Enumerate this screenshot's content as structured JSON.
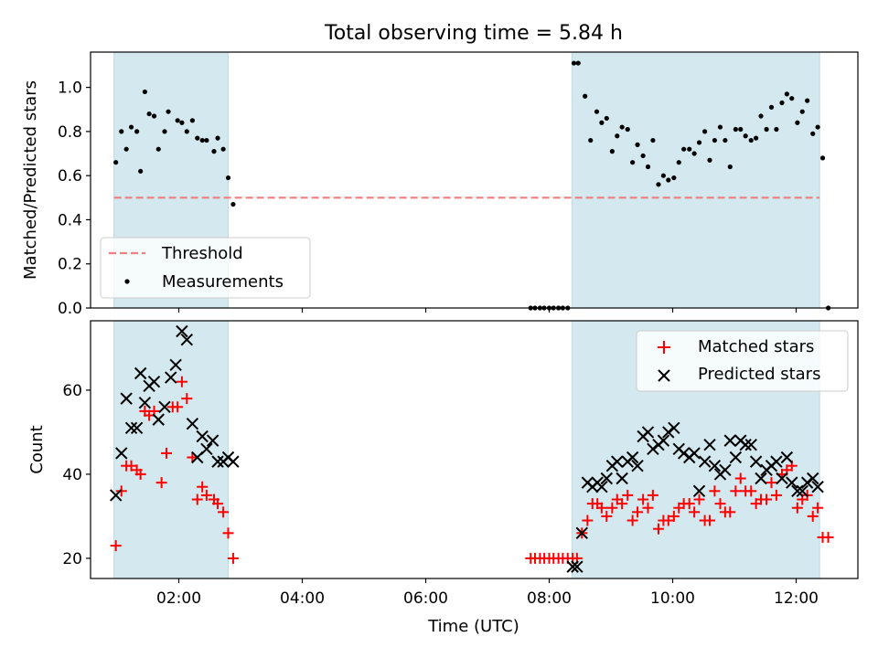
{
  "chart_data": [
    {
      "type": "scatter",
      "title": "Total observing time = 5.84 h",
      "ylabel": "Matched/Predicted stars",
      "xlabel": "",
      "xlim": [
        0.57,
        13.0
      ],
      "ylim": [
        0.0,
        1.16
      ],
      "yticks": [
        0.0,
        0.2,
        0.4,
        0.6,
        0.8,
        1.0
      ],
      "ytick_labels": [
        "0.0",
        "0.2",
        "0.4",
        "0.6",
        "0.8",
        "1.0"
      ],
      "xticks": [
        2,
        4,
        6,
        8,
        10,
        12
      ],
      "grid": false,
      "legend_position": "lower-left",
      "shaded_intervals": [
        [
          0.95,
          2.8
        ],
        [
          8.37,
          12.38
        ]
      ],
      "threshold": {
        "name": "Threshold",
        "value": 0.5,
        "x_range": [
          0.95,
          12.38
        ],
        "color": "#f07f7f"
      },
      "series": [
        {
          "name": "Measurements",
          "color": "#000000",
          "points": [
            [
              0.98,
              0.66
            ],
            [
              1.07,
              0.8
            ],
            [
              1.15,
              0.72
            ],
            [
              1.23,
              0.82
            ],
            [
              1.32,
              0.8
            ],
            [
              1.38,
              0.62
            ],
            [
              1.45,
              0.98
            ],
            [
              1.52,
              0.88
            ],
            [
              1.6,
              0.87
            ],
            [
              1.67,
              0.72
            ],
            [
              1.77,
              0.8
            ],
            [
              1.83,
              0.89
            ],
            [
              1.98,
              0.85
            ],
            [
              2.05,
              0.84
            ],
            [
              2.13,
              0.8
            ],
            [
              2.22,
              0.85
            ],
            [
              2.3,
              0.77
            ],
            [
              2.38,
              0.76
            ],
            [
              2.45,
              0.76
            ],
            [
              2.57,
              0.71
            ],
            [
              2.63,
              0.77
            ],
            [
              2.72,
              0.72
            ],
            [
              2.8,
              0.59
            ],
            [
              2.88,
              0.47
            ],
            [
              7.7,
              0.0
            ],
            [
              7.77,
              0.0
            ],
            [
              7.85,
              0.0
            ],
            [
              7.92,
              0.0
            ],
            [
              8.0,
              0.0
            ],
            [
              8.07,
              0.0
            ],
            [
              8.15,
              0.0
            ],
            [
              8.22,
              0.0
            ],
            [
              8.3,
              0.0
            ],
            [
              8.4,
              1.11
            ],
            [
              8.47,
              1.11
            ],
            [
              8.58,
              0.96
            ],
            [
              8.67,
              0.76
            ],
            [
              8.77,
              0.89
            ],
            [
              8.85,
              0.84
            ],
            [
              8.93,
              0.86
            ],
            [
              9.02,
              0.71
            ],
            [
              9.1,
              0.78
            ],
            [
              9.18,
              0.82
            ],
            [
              9.27,
              0.81
            ],
            [
              9.35,
              0.66
            ],
            [
              9.43,
              0.74
            ],
            [
              9.52,
              0.69
            ],
            [
              9.6,
              0.64
            ],
            [
              9.68,
              0.76
            ],
            [
              9.77,
              0.56
            ],
            [
              9.85,
              0.6
            ],
            [
              9.93,
              0.58
            ],
            [
              10.02,
              0.59
            ],
            [
              10.1,
              0.66
            ],
            [
              10.18,
              0.72
            ],
            [
              10.27,
              0.72
            ],
            [
              10.35,
              0.7
            ],
            [
              10.43,
              0.75
            ],
            [
              10.52,
              0.8
            ],
            [
              10.6,
              0.67
            ],
            [
              10.68,
              0.76
            ],
            [
              10.77,
              0.82
            ],
            [
              10.85,
              0.76
            ],
            [
              10.93,
              0.64
            ],
            [
              11.02,
              0.81
            ],
            [
              11.1,
              0.81
            ],
            [
              11.18,
              0.78
            ],
            [
              11.27,
              0.76
            ],
            [
              11.35,
              0.77
            ],
            [
              11.43,
              0.87
            ],
            [
              11.52,
              0.81
            ],
            [
              11.6,
              0.91
            ],
            [
              11.68,
              0.81
            ],
            [
              11.77,
              0.93
            ],
            [
              11.85,
              0.97
            ],
            [
              11.93,
              0.95
            ],
            [
              12.02,
              0.84
            ],
            [
              12.1,
              0.89
            ],
            [
              12.18,
              0.94
            ],
            [
              12.27,
              0.79
            ],
            [
              12.35,
              0.82
            ],
            [
              12.43,
              0.68
            ],
            [
              12.52,
              0.0
            ]
          ]
        }
      ]
    },
    {
      "type": "scatter",
      "title": "",
      "ylabel": "Count",
      "xlabel": "Time (UTC)",
      "xlim": [
        0.57,
        13.0
      ],
      "ylim": [
        15.2,
        76.5
      ],
      "yticks": [
        20,
        40,
        60
      ],
      "ytick_labels": [
        "20",
        "40",
        "60"
      ],
      "xticks": [
        2,
        4,
        6,
        8,
        10,
        12
      ],
      "xtick_labels": [
        "02:00",
        "04:00",
        "06:00",
        "08:00",
        "10:00",
        "12:00"
      ],
      "grid": false,
      "legend_position": "upper-right",
      "shaded_intervals": [
        [
          0.95,
          2.8
        ],
        [
          8.37,
          12.38
        ]
      ],
      "series": [
        {
          "name": "Matched stars",
          "color": "#ff0000",
          "marker": "plus",
          "points": [
            [
              0.98,
              23
            ],
            [
              1.07,
              36
            ],
            [
              1.15,
              42
            ],
            [
              1.23,
              42
            ],
            [
              1.32,
              41
            ],
            [
              1.38,
              40
            ],
            [
              1.45,
              55
            ],
            [
              1.52,
              54
            ],
            [
              1.6,
              55
            ],
            [
              1.72,
              38
            ],
            [
              1.8,
              45
            ],
            [
              1.9,
              56
            ],
            [
              1.98,
              56
            ],
            [
              2.05,
              62
            ],
            [
              2.13,
              58
            ],
            [
              2.22,
              44
            ],
            [
              2.3,
              34
            ],
            [
              2.38,
              37
            ],
            [
              2.45,
              35
            ],
            [
              2.57,
              34
            ],
            [
              2.63,
              33
            ],
            [
              2.72,
              31
            ],
            [
              2.8,
              26
            ],
            [
              2.88,
              20
            ],
            [
              7.7,
              20
            ],
            [
              7.77,
              20
            ],
            [
              7.85,
              20
            ],
            [
              7.92,
              20
            ],
            [
              8.0,
              20
            ],
            [
              8.07,
              20
            ],
            [
              8.15,
              20
            ],
            [
              8.22,
              20
            ],
            [
              8.3,
              20
            ],
            [
              8.38,
              20
            ],
            [
              8.45,
              20
            ],
            [
              8.53,
              26
            ],
            [
              8.62,
              29
            ],
            [
              8.7,
              33
            ],
            [
              8.78,
              33
            ],
            [
              8.85,
              32
            ],
            [
              8.93,
              30
            ],
            [
              9.02,
              32
            ],
            [
              9.1,
              34
            ],
            [
              9.18,
              33
            ],
            [
              9.27,
              35
            ],
            [
              9.35,
              29
            ],
            [
              9.43,
              31
            ],
            [
              9.52,
              34
            ],
            [
              9.6,
              32
            ],
            [
              9.68,
              35
            ],
            [
              9.77,
              27
            ],
            [
              9.85,
              29
            ],
            [
              9.93,
              29
            ],
            [
              10.02,
              30
            ],
            [
              10.1,
              32
            ],
            [
              10.18,
              33
            ],
            [
              10.27,
              33
            ],
            [
              10.35,
              31
            ],
            [
              10.43,
              34
            ],
            [
              10.52,
              29
            ],
            [
              10.6,
              29
            ],
            [
              10.68,
              36
            ],
            [
              10.77,
              33
            ],
            [
              10.85,
              31
            ],
            [
              10.93,
              31
            ],
            [
              11.02,
              36
            ],
            [
              11.1,
              39
            ],
            [
              11.18,
              36
            ],
            [
              11.27,
              36
            ],
            [
              11.35,
              33
            ],
            [
              11.43,
              34
            ],
            [
              11.52,
              34
            ],
            [
              11.6,
              38
            ],
            [
              11.68,
              35
            ],
            [
              11.77,
              40
            ],
            [
              11.85,
              41
            ],
            [
              11.93,
              42
            ],
            [
              12.02,
              32
            ],
            [
              12.1,
              34
            ],
            [
              12.18,
              35
            ],
            [
              12.27,
              30
            ],
            [
              12.35,
              32
            ],
            [
              12.43,
              25
            ],
            [
              12.52,
              25
            ]
          ]
        },
        {
          "name": "Predicted stars",
          "color": "#000000",
          "marker": "x",
          "points": [
            [
              0.98,
              35
            ],
            [
              1.07,
              45
            ],
            [
              1.15,
              58
            ],
            [
              1.23,
              51
            ],
            [
              1.32,
              51
            ],
            [
              1.38,
              64
            ],
            [
              1.45,
              57
            ],
            [
              1.52,
              61
            ],
            [
              1.6,
              62
            ],
            [
              1.67,
              53
            ],
            [
              1.77,
              56
            ],
            [
              1.87,
              63
            ],
            [
              1.95,
              66
            ],
            [
              2.05,
              74
            ],
            [
              2.13,
              72
            ],
            [
              2.22,
              52
            ],
            [
              2.3,
              44
            ],
            [
              2.38,
              49
            ],
            [
              2.45,
              46
            ],
            [
              2.55,
              48
            ],
            [
              2.63,
              43
            ],
            [
              2.72,
              43
            ],
            [
              2.8,
              44
            ],
            [
              2.88,
              43
            ],
            [
              8.38,
              18
            ],
            [
              8.45,
              18
            ],
            [
              8.53,
              26
            ],
            [
              8.62,
              38
            ],
            [
              8.7,
              37
            ],
            [
              8.78,
              38
            ],
            [
              8.85,
              37
            ],
            [
              8.93,
              39
            ],
            [
              9.02,
              42
            ],
            [
              9.1,
              43
            ],
            [
              9.18,
              39
            ],
            [
              9.27,
              43
            ],
            [
              9.35,
              44
            ],
            [
              9.43,
              42
            ],
            [
              9.52,
              49
            ],
            [
              9.6,
              50
            ],
            [
              9.68,
              46
            ],
            [
              9.77,
              47
            ],
            [
              9.85,
              48
            ],
            [
              9.93,
              50
            ],
            [
              10.02,
              51
            ],
            [
              10.1,
              46
            ],
            [
              10.18,
              45
            ],
            [
              10.27,
              44
            ],
            [
              10.35,
              45
            ],
            [
              10.43,
              36
            ],
            [
              10.52,
              43
            ],
            [
              10.6,
              47
            ],
            [
              10.68,
              42
            ],
            [
              10.77,
              40
            ],
            [
              10.85,
              41
            ],
            [
              10.93,
              48
            ],
            [
              11.02,
              44
            ],
            [
              11.1,
              48
            ],
            [
              11.18,
              47
            ],
            [
              11.27,
              47
            ],
            [
              11.35,
              43
            ],
            [
              11.43,
              39
            ],
            [
              11.52,
              41
            ],
            [
              11.6,
              42
            ],
            [
              11.68,
              43
            ],
            [
              11.77,
              39
            ],
            [
              11.85,
              44
            ],
            [
              11.93,
              38
            ],
            [
              12.02,
              36
            ],
            [
              12.1,
              36
            ],
            [
              12.18,
              38
            ],
            [
              12.27,
              39
            ],
            [
              12.35,
              37
            ]
          ]
        }
      ]
    }
  ],
  "colors": {
    "shade": "#d3e9ef",
    "shade_edge": "#b9dbe5",
    "axes": "#000000",
    "legend_edge": "#cccccc"
  }
}
